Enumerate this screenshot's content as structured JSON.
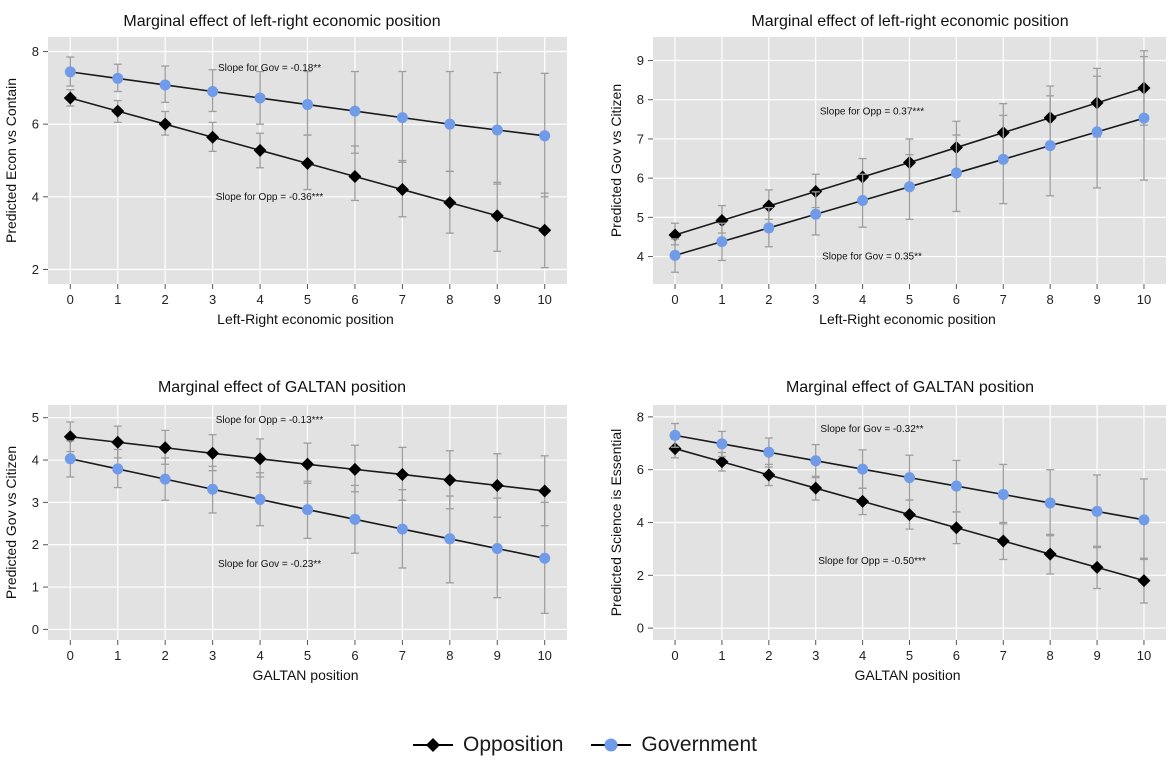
{
  "colors": {
    "opposition": "#000000",
    "government": "#6f9be8",
    "panel_background": "#e2e2e2",
    "grid": "#ffffff",
    "error_bar": "#9e9e9e"
  },
  "legend": {
    "placement": "bottom-center",
    "items": [
      {
        "label": "Opposition",
        "marker": "diamond",
        "color": "#000000"
      },
      {
        "label": "Government",
        "marker": "circle",
        "color": "#6f9be8"
      }
    ]
  },
  "chart_data": [
    {
      "type": "line",
      "title": "Marginal effect of left-right economic position",
      "xlabel": "Left-Right economic position",
      "ylabel": "Predicted Econ vs Contain",
      "xlim": [
        0,
        10
      ],
      "ylim": [
        1.6,
        8.4
      ],
      "xticks": [
        0,
        1,
        2,
        3,
        4,
        5,
        6,
        7,
        8,
        9,
        10
      ],
      "yticks": [
        2,
        4,
        6,
        8
      ],
      "grid": true,
      "x": [
        0,
        1,
        2,
        3,
        4,
        5,
        6,
        7,
        8,
        9,
        10
      ],
      "series": [
        {
          "name": "Opposition",
          "values": [
            6.72,
            6.36,
            6.0,
            5.64,
            5.28,
            4.92,
            4.56,
            4.2,
            3.84,
            3.48,
            3.08
          ],
          "lower": [
            6.5,
            6.05,
            5.7,
            5.25,
            4.8,
            4.2,
            3.9,
            3.45,
            3.0,
            2.5,
            2.05
          ],
          "upper": [
            6.95,
            6.65,
            6.35,
            6.05,
            5.75,
            5.7,
            5.4,
            5.0,
            4.7,
            4.4,
            4.1
          ]
        },
        {
          "name": "Government",
          "values": [
            7.44,
            7.26,
            7.08,
            6.9,
            6.72,
            6.54,
            6.36,
            6.18,
            6.0,
            5.84,
            5.68
          ],
          "lower": [
            7.05,
            6.9,
            6.6,
            6.35,
            6.0,
            5.7,
            5.2,
            4.95,
            4.7,
            4.35,
            4.0
          ],
          "upper": [
            7.85,
            7.65,
            7.6,
            7.5,
            7.45,
            7.45,
            7.45,
            7.45,
            7.45,
            7.42,
            7.4
          ]
        }
      ],
      "annotations": [
        {
          "text": "Slope for Gov = -0.18**",
          "x": 4.2,
          "y": 7.55
        },
        {
          "text": "Slope for Opp = -0.36***",
          "x": 4.2,
          "y": 4.0
        }
      ]
    },
    {
      "type": "line",
      "title": "Marginal effect of left-right economic position",
      "xlabel": "Left-Right economic position",
      "ylabel": "Predicted Gov vs Citizen",
      "xlim": [
        0,
        10
      ],
      "ylim": [
        3.3,
        9.6
      ],
      "xticks": [
        0,
        1,
        2,
        3,
        4,
        5,
        6,
        7,
        8,
        9,
        10
      ],
      "yticks": [
        4,
        5,
        6,
        7,
        8,
        9
      ],
      "grid": true,
      "x": [
        0,
        1,
        2,
        3,
        4,
        5,
        6,
        7,
        8,
        9,
        10
      ],
      "series": [
        {
          "name": "Opposition",
          "values": [
            4.55,
            4.92,
            5.29,
            5.66,
            6.03,
            6.4,
            6.78,
            7.16,
            7.54,
            7.92,
            8.3
          ],
          "lower": [
            4.3,
            4.6,
            4.95,
            5.25,
            5.5,
            5.8,
            6.15,
            6.45,
            6.75,
            7.05,
            7.35
          ],
          "upper": [
            4.85,
            5.3,
            5.7,
            6.1,
            6.5,
            7.0,
            7.45,
            7.9,
            8.35,
            8.8,
            9.25
          ]
        },
        {
          "name": "Government",
          "values": [
            4.03,
            4.38,
            4.73,
            5.08,
            5.43,
            5.78,
            6.13,
            6.48,
            6.83,
            7.18,
            7.53
          ],
          "lower": [
            3.6,
            3.9,
            4.25,
            4.55,
            4.75,
            4.95,
            5.15,
            5.35,
            5.55,
            5.75,
            5.95
          ],
          "upper": [
            4.45,
            4.85,
            5.25,
            5.65,
            6.1,
            6.6,
            7.1,
            7.6,
            8.1,
            8.6,
            9.1
          ]
        }
      ],
      "annotations": [
        {
          "text": "Slope for Opp = 0.37***",
          "x": 4.2,
          "y": 7.7
        },
        {
          "text": "Slope for Gov = 0.35**",
          "x": 4.2,
          "y": 4.0
        }
      ]
    },
    {
      "type": "line",
      "title": "Marginal effect of GALTAN position",
      "xlabel": "GALTAN position",
      "ylabel": "Predicted Gov vs Citizen",
      "xlim": [
        0,
        10
      ],
      "ylim": [
        -0.25,
        5.3
      ],
      "xticks": [
        0,
        1,
        2,
        3,
        4,
        5,
        6,
        7,
        8,
        9,
        10
      ],
      "yticks": [
        0,
        1,
        2,
        3,
        4,
        5
      ],
      "grid": true,
      "x": [
        0,
        1,
        2,
        3,
        4,
        5,
        6,
        7,
        8,
        9,
        10
      ],
      "series": [
        {
          "name": "Opposition",
          "values": [
            4.55,
            4.42,
            4.29,
            4.16,
            4.03,
            3.9,
            3.78,
            3.66,
            3.53,
            3.4,
            3.27
          ],
          "lower": [
            4.2,
            4.05,
            3.9,
            3.75,
            3.6,
            3.45,
            3.25,
            3.05,
            2.85,
            2.65,
            2.45
          ],
          "upper": [
            4.9,
            4.8,
            4.7,
            4.6,
            4.5,
            4.4,
            4.35,
            4.3,
            4.22,
            4.15,
            4.1
          ]
        },
        {
          "name": "Government",
          "values": [
            4.03,
            3.79,
            3.55,
            3.31,
            3.07,
            2.83,
            2.6,
            2.37,
            2.14,
            1.91,
            1.68
          ],
          "lower": [
            3.6,
            3.35,
            3.05,
            2.75,
            2.45,
            2.15,
            1.8,
            1.45,
            1.1,
            0.75,
            0.38
          ],
          "upper": [
            4.45,
            4.25,
            4.05,
            3.85,
            3.7,
            3.5,
            3.4,
            3.3,
            3.15,
            3.1,
            3.0
          ]
        }
      ],
      "annotations": [
        {
          "text": "Slope for Opp = -0.13***",
          "x": 4.2,
          "y": 4.95
        },
        {
          "text": "Slope for Gov = -0.23**",
          "x": 4.2,
          "y": 1.55
        }
      ]
    },
    {
      "type": "line",
      "title": "Marginal effect of GALTAN position",
      "xlabel": "GALTAN position",
      "ylabel": "Predicted Science is Essential",
      "xlim": [
        0,
        10
      ],
      "ylim": [
        -0.45,
        8.45
      ],
      "xticks": [
        0,
        1,
        2,
        3,
        4,
        5,
        6,
        7,
        8,
        9,
        10
      ],
      "yticks": [
        0,
        2,
        4,
        6,
        8
      ],
      "grid": true,
      "x": [
        0,
        1,
        2,
        3,
        4,
        5,
        6,
        7,
        8,
        9,
        10
      ],
      "series": [
        {
          "name": "Opposition",
          "values": [
            6.8,
            6.3,
            5.8,
            5.3,
            4.8,
            4.3,
            3.8,
            3.3,
            2.8,
            2.3,
            1.8
          ],
          "lower": [
            6.45,
            5.95,
            5.4,
            4.85,
            4.3,
            3.75,
            3.2,
            2.6,
            2.05,
            1.5,
            0.95
          ],
          "upper": [
            7.15,
            6.65,
            6.2,
            5.75,
            5.3,
            4.85,
            4.4,
            4.0,
            3.55,
            3.1,
            2.65
          ]
        },
        {
          "name": "Government",
          "values": [
            7.3,
            6.98,
            6.66,
            6.34,
            6.02,
            5.7,
            5.38,
            5.06,
            4.74,
            4.42,
            4.1
          ],
          "lower": [
            6.85,
            6.5,
            6.1,
            5.7,
            5.3,
            4.85,
            4.4,
            3.95,
            3.5,
            3.05,
            2.6
          ],
          "upper": [
            7.75,
            7.45,
            7.2,
            6.95,
            6.75,
            6.55,
            6.35,
            6.2,
            6.0,
            5.8,
            5.65
          ]
        }
      ],
      "annotations": [
        {
          "text": "Slope for Gov = -0.32**",
          "x": 4.2,
          "y": 7.55
        },
        {
          "text": "Slope for Opp = -0.50***",
          "x": 4.2,
          "y": 2.55
        }
      ]
    }
  ]
}
